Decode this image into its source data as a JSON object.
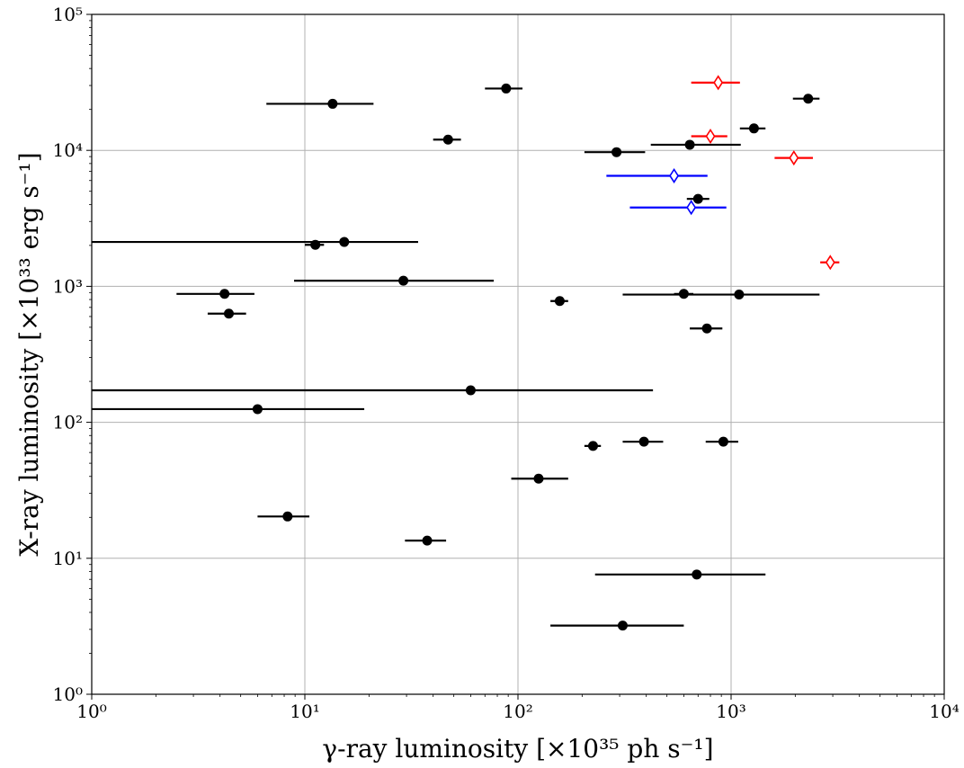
{
  "chart_data": {
    "type": "scatter",
    "xlabel": "γ-ray luminosity [×10³⁵ ph s⁻¹]",
    "ylabel": "X-ray luminosity [×10³³ erg s⁻¹]",
    "xscale": "log",
    "yscale": "log",
    "xlim": [
      1,
      10000
    ],
    "ylim": [
      1,
      100000
    ],
    "grid": true,
    "x_ticks": [
      {
        "value": 1,
        "label": "10⁰"
      },
      {
        "value": 10,
        "label": "10¹"
      },
      {
        "value": 100,
        "label": "10²"
      },
      {
        "value": 1000,
        "label": "10³"
      },
      {
        "value": 10000,
        "label": "10⁴"
      }
    ],
    "y_ticks": [
      {
        "value": 1,
        "label": "10⁰"
      },
      {
        "value": 10,
        "label": "10¹"
      },
      {
        "value": 100,
        "label": "10²"
      },
      {
        "value": 1000,
        "label": "10³"
      },
      {
        "value": 10000,
        "label": "10⁴"
      },
      {
        "value": 100000,
        "label": "10⁵"
      }
    ],
    "series": [
      {
        "marker": "circle-filled",
        "color": "#000000",
        "points": [
          {
            "x": 13.5,
            "y": 22000,
            "xlo": 6.6,
            "xhi": 21
          },
          {
            "x": 88,
            "y": 28500,
            "xlo": 70,
            "xhi": 105
          },
          {
            "x": 47,
            "y": 12000,
            "xlo": 40,
            "xhi": 54
          },
          {
            "x": 2300,
            "y": 24000,
            "xlo": 1950,
            "xhi": 2600
          },
          {
            "x": 1280,
            "y": 14500,
            "xlo": 1100,
            "xhi": 1450
          },
          {
            "x": 640,
            "y": 11000,
            "xlo": 420,
            "xhi": 1110
          },
          {
            "x": 290,
            "y": 9700,
            "xlo": 205,
            "xhi": 395
          },
          {
            "x": 700,
            "y": 4400,
            "xlo": 620,
            "xhi": 790
          },
          {
            "x": 11.2,
            "y": 2020,
            "xlo": 10,
            "xhi": 12.3
          },
          {
            "x": 15.3,
            "y": 2120,
            "xlo": 1,
            "xhi": 34
          },
          {
            "x": 29,
            "y": 1100,
            "xlo": 8.9,
            "xhi": 77
          },
          {
            "x": 4.2,
            "y": 880,
            "xlo": 2.5,
            "xhi": 5.8
          },
          {
            "x": 4.4,
            "y": 630,
            "xlo": 3.5,
            "xhi": 5.3
          },
          {
            "x": 157,
            "y": 780,
            "xlo": 142,
            "xhi": 172
          },
          {
            "x": 600,
            "y": 880,
            "xlo": 540,
            "xhi": 665
          },
          {
            "x": 1090,
            "y": 870,
            "xlo": 310,
            "xhi": 2600
          },
          {
            "x": 770,
            "y": 490,
            "xlo": 640,
            "xhi": 910
          },
          {
            "x": 60,
            "y": 172,
            "xlo": 1,
            "xhi": 430
          },
          {
            "x": 6,
            "y": 125,
            "xlo": 1,
            "xhi": 19
          },
          {
            "x": 225,
            "y": 67,
            "xlo": 205,
            "xhi": 245
          },
          {
            "x": 390,
            "y": 72,
            "xlo": 310,
            "xhi": 480
          },
          {
            "x": 920,
            "y": 72,
            "xlo": 760,
            "xhi": 1080
          },
          {
            "x": 125,
            "y": 38.5,
            "xlo": 93,
            "xhi": 172
          },
          {
            "x": 8.3,
            "y": 20.3,
            "xlo": 6,
            "xhi": 10.5
          },
          {
            "x": 37.5,
            "y": 13.5,
            "xlo": 29.5,
            "xhi": 46
          },
          {
            "x": 690,
            "y": 7.6,
            "xlo": 230,
            "xhi": 1450
          },
          {
            "x": 310,
            "y": 3.2,
            "xlo": 142,
            "xhi": 600
          }
        ]
      },
      {
        "marker": "diamond-open",
        "color": "#ff0000",
        "points": [
          {
            "x": 870,
            "y": 31500,
            "xlo": 650,
            "xhi": 1100
          },
          {
            "x": 800,
            "y": 12700,
            "xlo": 650,
            "xhi": 960
          },
          {
            "x": 1970,
            "y": 8800,
            "xlo": 1600,
            "xhi": 2420
          },
          {
            "x": 2920,
            "y": 1500,
            "xlo": 2620,
            "xhi": 3220
          }
        ]
      },
      {
        "marker": "diamond-open",
        "color": "#0000ff",
        "points": [
          {
            "x": 540,
            "y": 6500,
            "xlo": 260,
            "xhi": 775
          },
          {
            "x": 650,
            "y": 3800,
            "xlo": 335,
            "xhi": 950
          }
        ]
      }
    ]
  }
}
